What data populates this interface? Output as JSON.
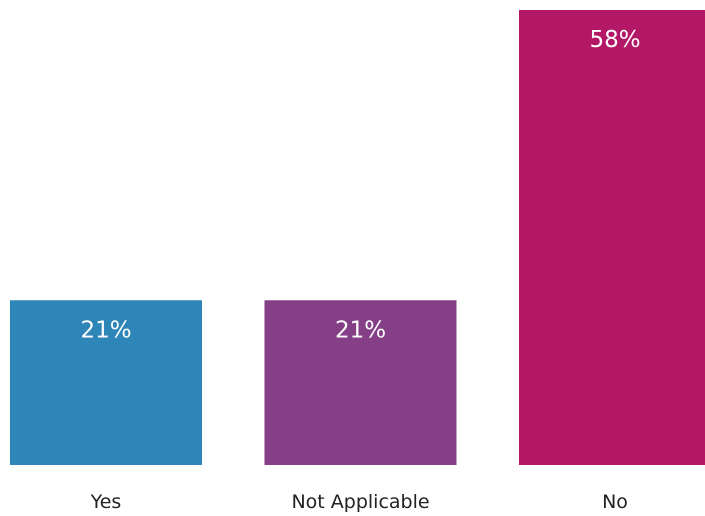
{
  "chart_data": {
    "type": "bar",
    "categories": [
      "Yes",
      "Not Applicable",
      "No"
    ],
    "values": [
      21,
      21,
      58
    ],
    "value_labels": [
      "21%",
      "21%",
      "58%"
    ],
    "colors": [
      "#2e86b8",
      "#843f86",
      "#b21866"
    ],
    "title": "",
    "xlabel": "",
    "ylabel": "",
    "ylim": [
      0,
      58
    ],
    "grid": false,
    "legend": "none"
  }
}
